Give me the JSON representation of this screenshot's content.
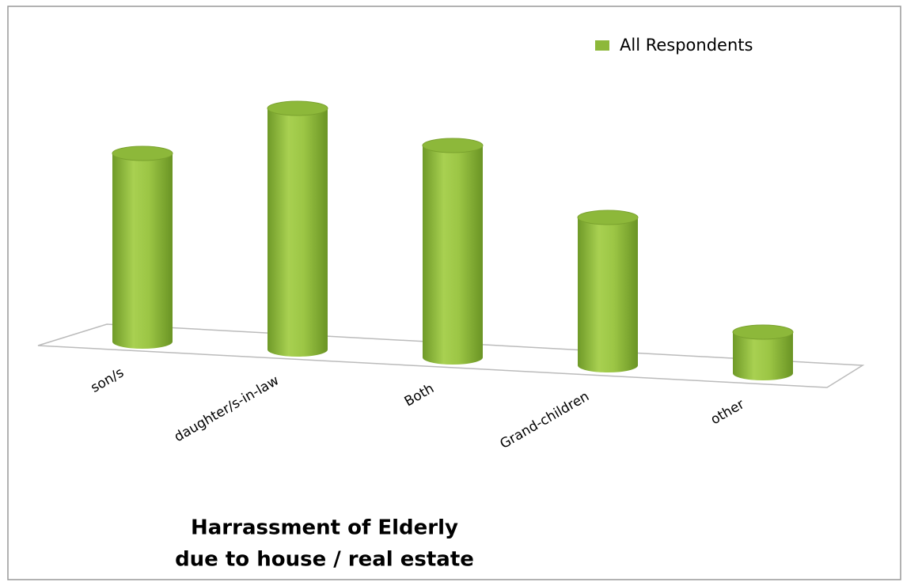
{
  "chart_data": {
    "type": "bar",
    "title": [
      "Harrassment  of Elderly",
      "due to house / real estate"
    ],
    "categories": [
      "son/s",
      "daughter/s-in-law",
      "Both",
      "Grand-children",
      "other"
    ],
    "series": [
      {
        "name": "All Respondents",
        "color": "#8db83a",
        "values": [
          238,
          305,
          268,
          187,
          52
        ]
      }
    ],
    "legend": "top-right"
  }
}
